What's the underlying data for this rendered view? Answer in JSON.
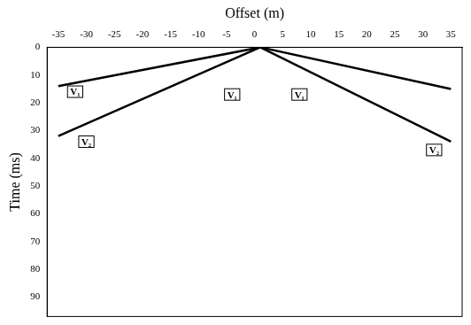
{
  "chart_data": {
    "type": "line",
    "x_label": "Offset (m)",
    "y_label": "Time (ms)",
    "xlim": [
      -37,
      37
    ],
    "xticks": [
      -35,
      -30,
      -25,
      -20,
      -15,
      -10,
      -5,
      0,
      5,
      10,
      15,
      20,
      25,
      30,
      35
    ],
    "ylim": [
      0,
      97
    ],
    "yticks": [
      0,
      10,
      20,
      30,
      40,
      50,
      60,
      70,
      80,
      90
    ],
    "grid": false,
    "color": "#000000",
    "series": [
      {
        "x": [
          1,
          -35
        ],
        "values": [
          0,
          14
        ]
      },
      {
        "x": [
          1,
          35
        ],
        "values": [
          0,
          15
        ]
      },
      {
        "x": [
          1,
          -35
        ],
        "values": [
          0,
          32
        ]
      },
      {
        "x": [
          1,
          35
        ],
        "values": [
          0,
          34
        ]
      }
    ],
    "annotations": [
      {
        "text": "V₁",
        "x": -32,
        "y": 16
      },
      {
        "text": "V₂",
        "x": -30,
        "y": 34
      },
      {
        "text": "V₁",
        "x": -4,
        "y": 17
      },
      {
        "text": "V₁",
        "x": 8,
        "y": 17
      },
      {
        "text": "V₂",
        "x": 32,
        "y": 37
      }
    ]
  }
}
